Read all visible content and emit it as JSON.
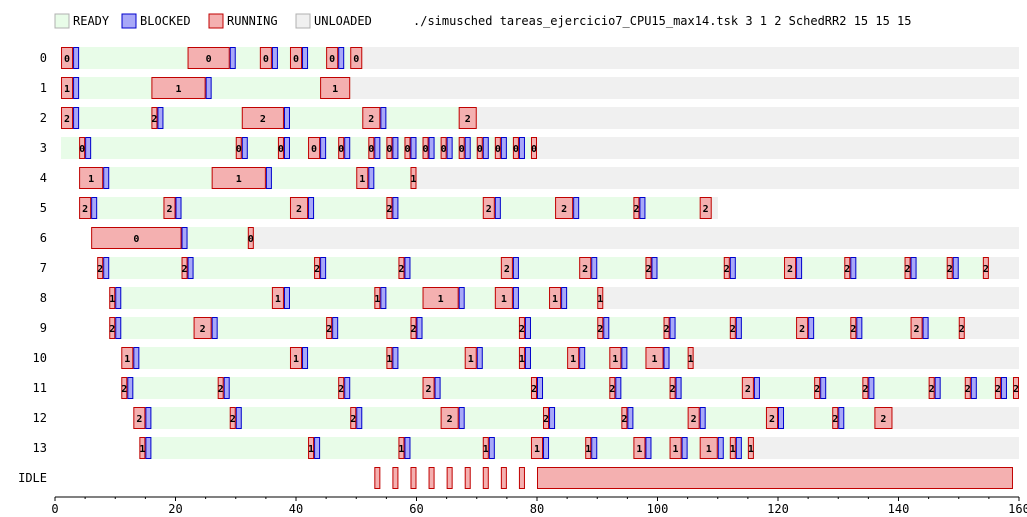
{
  "chart_data": {
    "type": "timeline",
    "title": "./simusched tareas_ejercicio7_CPU15_max14.tsk 3 1 2 SchedRR2 15 15 15",
    "xlim": [
      0,
      160
    ],
    "x_ticks": [
      0,
      20,
      40,
      60,
      80,
      100,
      120,
      140,
      160
    ],
    "legend": [
      {
        "label": "READY",
        "color": "#e8fce8",
        "stroke": "#b0b0b0"
      },
      {
        "label": "BLOCKED",
        "color": "#a8a8f8",
        "stroke": "#0000cc"
      },
      {
        "label": "RUNNING",
        "color": "#f4b0b0",
        "stroke": "#c00000"
      },
      {
        "label": "UNLOADED",
        "color": "#f0f0f0",
        "stroke": "#b0b0b0"
      }
    ],
    "tasks": [
      {
        "label": "0",
        "start": 1,
        "end": 160,
        "running": [
          [
            1,
            3,
            "0"
          ],
          [
            22,
            29,
            "0"
          ],
          [
            34,
            36,
            "0"
          ],
          [
            39,
            41,
            "0"
          ],
          [
            45,
            47,
            "0"
          ],
          [
            49,
            51,
            "0"
          ]
        ],
        "blocked": [
          [
            3,
            4
          ],
          [
            29,
            30
          ],
          [
            36,
            37
          ],
          [
            41,
            42
          ],
          [
            47,
            48
          ]
        ]
      },
      {
        "label": "1",
        "start": 1,
        "end": 160,
        "running": [
          [
            1,
            3,
            "1"
          ],
          [
            16,
            25,
            "1"
          ],
          [
            44,
            49,
            "1"
          ]
        ],
        "blocked": [
          [
            3,
            4
          ],
          [
            25,
            26
          ]
        ]
      },
      {
        "label": "2",
        "start": 1,
        "end": 160,
        "running": [
          [
            1,
            3,
            "2"
          ],
          [
            16,
            17,
            "2"
          ],
          [
            31,
            38,
            "2"
          ],
          [
            51,
            54,
            "2"
          ],
          [
            67,
            70,
            "2"
          ]
        ],
        "blocked": [
          [
            3,
            4
          ],
          [
            17,
            18
          ],
          [
            38,
            39
          ],
          [
            54,
            55
          ]
        ]
      },
      {
        "label": "3",
        "start": 1,
        "end": 160,
        "running": [
          [
            4,
            5,
            "0"
          ],
          [
            30,
            31,
            "0"
          ],
          [
            37,
            38,
            "0"
          ],
          [
            42,
            44,
            "0"
          ],
          [
            47,
            48,
            "0"
          ],
          [
            52,
            53,
            "0"
          ],
          [
            55,
            56,
            "0"
          ],
          [
            58,
            59,
            "0"
          ],
          [
            61,
            62,
            "0"
          ],
          [
            64,
            65,
            "0"
          ],
          [
            67,
            68,
            "0"
          ],
          [
            70,
            71,
            "0"
          ],
          [
            73,
            74,
            "0"
          ],
          [
            76,
            77,
            "0"
          ],
          [
            79,
            80,
            "0"
          ]
        ],
        "blocked": [
          [
            5,
            6
          ],
          [
            31,
            32
          ],
          [
            38,
            39
          ],
          [
            44,
            45
          ],
          [
            48,
            49
          ],
          [
            53,
            54
          ],
          [
            56,
            57
          ],
          [
            59,
            60
          ],
          [
            62,
            63
          ],
          [
            65,
            66
          ],
          [
            68,
            69
          ],
          [
            71,
            72
          ],
          [
            74,
            75
          ],
          [
            77,
            78
          ]
        ]
      },
      {
        "label": "4",
        "start": 4,
        "end": 160,
        "running": [
          [
            4,
            8,
            "1"
          ],
          [
            26,
            35,
            "1"
          ],
          [
            50,
            52,
            "1"
          ],
          [
            59,
            60,
            "1"
          ]
        ],
        "blocked": [
          [
            8,
            9
          ],
          [
            35,
            36
          ],
          [
            52,
            53
          ]
        ]
      },
      {
        "label": "5",
        "start": 4,
        "end": 110,
        "running": [
          [
            4,
            6,
            "2"
          ],
          [
            18,
            20,
            "2"
          ],
          [
            39,
            42,
            "2"
          ],
          [
            55,
            56,
            "2"
          ],
          [
            71,
            73,
            "2"
          ],
          [
            83,
            86,
            "2"
          ],
          [
            96,
            97,
            "2"
          ],
          [
            107,
            109,
            "2"
          ]
        ],
        "blocked": [
          [
            6,
            7
          ],
          [
            20,
            21
          ],
          [
            42,
            43
          ],
          [
            56,
            57
          ],
          [
            73,
            74
          ],
          [
            86,
            87
          ],
          [
            97,
            98
          ]
        ]
      },
      {
        "label": "6",
        "start": 6,
        "end": 160,
        "running": [
          [
            6,
            21,
            "0"
          ],
          [
            32,
            33,
            "0"
          ]
        ],
        "blocked": [
          [
            21,
            22
          ]
        ]
      },
      {
        "label": "7",
        "start": 7,
        "end": 160,
        "running": [
          [
            7,
            8,
            "2"
          ],
          [
            21,
            22,
            "2"
          ],
          [
            43,
            44,
            "2"
          ],
          [
            57,
            58,
            "2"
          ],
          [
            74,
            76,
            "2"
          ],
          [
            87,
            89,
            "2"
          ],
          [
            98,
            99,
            "2"
          ],
          [
            111,
            112,
            "2"
          ],
          [
            121,
            123,
            "2"
          ],
          [
            131,
            132,
            "2"
          ],
          [
            141,
            142,
            "2"
          ],
          [
            148,
            149,
            "2"
          ],
          [
            154,
            155,
            "2"
          ]
        ],
        "blocked": [
          [
            8,
            9
          ],
          [
            22,
            23
          ],
          [
            44,
            45
          ],
          [
            58,
            59
          ],
          [
            76,
            77
          ],
          [
            89,
            90
          ],
          [
            99,
            100
          ],
          [
            112,
            113
          ],
          [
            123,
            124
          ],
          [
            132,
            133
          ],
          [
            142,
            143
          ],
          [
            149,
            150
          ]
        ]
      },
      {
        "label": "8",
        "start": 9,
        "end": 160,
        "running": [
          [
            9,
            10,
            "1"
          ],
          [
            36,
            38,
            "1"
          ],
          [
            53,
            54,
            "1"
          ],
          [
            61,
            67,
            "1"
          ],
          [
            73,
            76,
            "1"
          ],
          [
            82,
            84,
            "1"
          ],
          [
            90,
            91,
            "1"
          ]
        ],
        "blocked": [
          [
            10,
            11
          ],
          [
            38,
            39
          ],
          [
            54,
            55
          ],
          [
            67,
            68
          ],
          [
            76,
            77
          ],
          [
            84,
            85
          ]
        ]
      },
      {
        "label": "9",
        "start": 9,
        "end": 160,
        "running": [
          [
            9,
            10,
            "2"
          ],
          [
            23,
            26,
            "2"
          ],
          [
            45,
            46,
            "2"
          ],
          [
            59,
            60,
            "2"
          ],
          [
            77,
            78,
            "2"
          ],
          [
            90,
            91,
            "2"
          ],
          [
            101,
            102,
            "2"
          ],
          [
            112,
            113,
            "2"
          ],
          [
            123,
            125,
            "2"
          ],
          [
            132,
            133,
            "2"
          ],
          [
            142,
            144,
            "2"
          ],
          [
            150,
            151,
            "2"
          ]
        ],
        "blocked": [
          [
            10,
            11
          ],
          [
            26,
            27
          ],
          [
            46,
            47
          ],
          [
            60,
            61
          ],
          [
            78,
            79
          ],
          [
            91,
            92
          ],
          [
            102,
            103
          ],
          [
            113,
            114
          ],
          [
            125,
            126
          ],
          [
            133,
            134
          ],
          [
            144,
            145
          ]
        ]
      },
      {
        "label": "10",
        "start": 11,
        "end": 160,
        "running": [
          [
            11,
            13,
            "1"
          ],
          [
            39,
            41,
            "1"
          ],
          [
            55,
            56,
            "1"
          ],
          [
            68,
            70,
            "1"
          ],
          [
            77,
            78,
            "1"
          ],
          [
            85,
            87,
            "1"
          ],
          [
            92,
            94,
            "1"
          ],
          [
            98,
            101,
            "1"
          ],
          [
            105,
            106,
            "1"
          ]
        ],
        "blocked": [
          [
            13,
            14
          ],
          [
            41,
            42
          ],
          [
            56,
            57
          ],
          [
            70,
            71
          ],
          [
            78,
            79
          ],
          [
            87,
            88
          ],
          [
            94,
            95
          ],
          [
            101,
            102
          ]
        ]
      },
      {
        "label": "11",
        "start": 11,
        "end": 160,
        "running": [
          [
            11,
            12,
            "2"
          ],
          [
            27,
            28,
            "2"
          ],
          [
            47,
            48,
            "2"
          ],
          [
            61,
            63,
            "2"
          ],
          [
            79,
            80,
            "2"
          ],
          [
            92,
            93,
            "2"
          ],
          [
            102,
            103,
            "2"
          ],
          [
            114,
            116,
            "2"
          ],
          [
            126,
            127,
            "2"
          ],
          [
            134,
            135,
            "2"
          ],
          [
            145,
            146,
            "2"
          ],
          [
            151,
            152,
            "2"
          ],
          [
            156,
            157,
            "2"
          ],
          [
            159,
            160,
            "2"
          ]
        ],
        "blocked": [
          [
            12,
            13
          ],
          [
            28,
            29
          ],
          [
            48,
            49
          ],
          [
            63,
            64
          ],
          [
            80,
            81
          ],
          [
            93,
            94
          ],
          [
            103,
            104
          ],
          [
            116,
            117
          ],
          [
            127,
            128
          ],
          [
            135,
            136
          ],
          [
            146,
            147
          ],
          [
            152,
            153
          ],
          [
            157,
            158
          ]
        ]
      },
      {
        "label": "12",
        "start": 13,
        "end": 160,
        "running": [
          [
            13,
            15,
            "2"
          ],
          [
            29,
            30,
            "2"
          ],
          [
            49,
            50,
            "2"
          ],
          [
            64,
            67,
            "2"
          ],
          [
            81,
            82,
            "2"
          ],
          [
            94,
            95,
            "2"
          ],
          [
            105,
            107,
            "2"
          ],
          [
            118,
            120,
            "2"
          ],
          [
            129,
            130,
            "2"
          ],
          [
            136,
            139,
            "2"
          ]
        ],
        "blocked": [
          [
            15,
            16
          ],
          [
            30,
            31
          ],
          [
            50,
            51
          ],
          [
            67,
            68
          ],
          [
            82,
            83
          ],
          [
            95,
            96
          ],
          [
            107,
            108
          ],
          [
            120,
            121
          ],
          [
            130,
            131
          ]
        ]
      },
      {
        "label": "13",
        "start": 14,
        "end": 160,
        "running": [
          [
            14,
            15,
            "1"
          ],
          [
            42,
            43,
            "1"
          ],
          [
            57,
            58,
            "1"
          ],
          [
            71,
            72,
            "1"
          ],
          [
            79,
            81,
            "1"
          ],
          [
            88,
            89,
            "1"
          ],
          [
            96,
            98,
            "1"
          ],
          [
            102,
            104,
            "1"
          ],
          [
            107,
            110,
            "1"
          ],
          [
            112,
            113,
            "1"
          ],
          [
            115,
            116,
            "1"
          ]
        ],
        "blocked": [
          [
            15,
            16
          ],
          [
            43,
            44
          ],
          [
            58,
            59
          ],
          [
            72,
            73
          ],
          [
            81,
            82
          ],
          [
            89,
            90
          ],
          [
            98,
            99
          ],
          [
            104,
            105
          ],
          [
            110,
            111
          ],
          [
            113,
            114
          ]
        ]
      },
      {
        "label": "IDLE",
        "start": 0,
        "end": 0,
        "running": [
          [
            53,
            54,
            ""
          ],
          [
            56,
            57,
            ""
          ],
          [
            59,
            60,
            ""
          ],
          [
            62,
            63,
            ""
          ],
          [
            65,
            66,
            ""
          ],
          [
            68,
            69,
            ""
          ],
          [
            71,
            72,
            ""
          ],
          [
            74,
            75,
            ""
          ],
          [
            77,
            78,
            ""
          ],
          [
            80,
            159,
            ""
          ]
        ],
        "blocked": []
      }
    ]
  }
}
